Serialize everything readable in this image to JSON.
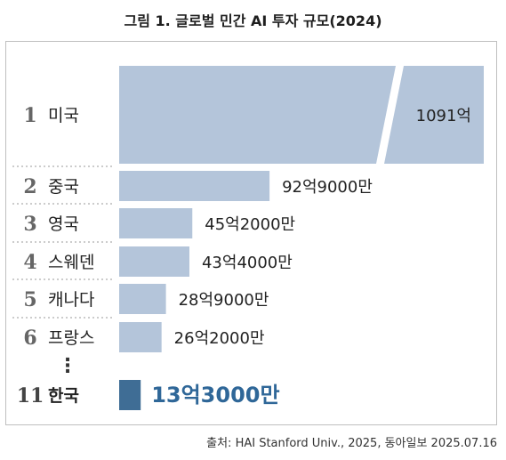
{
  "title": "그림 1. 글로벌 민간 AI 투자 규모(2024)",
  "source": "출처: HAI Stanford Univ., 2025, 동아일보 2025.07.16",
  "colors": {
    "bar": "#b4c5da",
    "highlight_bar": "#3f6d95",
    "highlight_text": "#2f6798",
    "rank_text": "#666666",
    "divider": "#9a9a9a"
  },
  "chart_data": {
    "type": "bar",
    "orientation": "horizontal",
    "title": "그림 1. 글로벌 민간 AI 투자 규모(2024)",
    "unit": "억 달러",
    "axis_break": true,
    "ellipsis": "⋮",
    "categories": [
      "미국",
      "중국",
      "영국",
      "스웨덴",
      "캐나다",
      "프랑스",
      "한국"
    ],
    "ranks": [
      "1",
      "2",
      "3",
      "4",
      "5",
      "6",
      "11"
    ],
    "values": [
      1091,
      92.9,
      45.2,
      43.4,
      28.9,
      26.2,
      13.3
    ],
    "labels": [
      "1091억",
      "92억9000만",
      "45억2000만",
      "43억4000만",
      "28억9000만",
      "26억2000만",
      "13억3000만"
    ],
    "highlight": "한국"
  }
}
